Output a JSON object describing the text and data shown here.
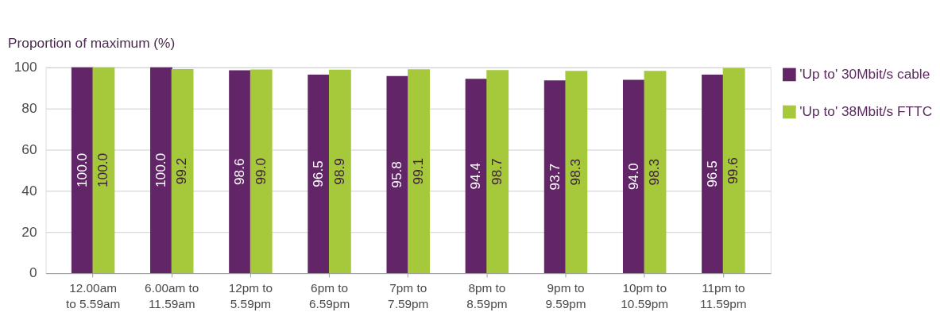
{
  "chart_data": {
    "type": "bar",
    "ylabel": "Proportion of maximum (%)",
    "categories": [
      "12.00am\nto 5.59am",
      "6.00am to\n11.59am",
      "12pm to\n5.59pm",
      "6pm to\n6.59pm",
      "7pm to\n7.59pm",
      "8pm to\n8.59pm",
      "9pm to\n9.59pm",
      "10pm to\n10.59pm",
      "11pm to\n11.59pm"
    ],
    "series": [
      {
        "name": "'Up to'\n30Mbit/s\ncable",
        "color": "#622567",
        "values": [
          100.0,
          100.0,
          98.6,
          96.5,
          95.8,
          94.4,
          93.7,
          94.0,
          96.5
        ],
        "value_labels": [
          "100.0",
          "100.0",
          "98.6",
          "96.5",
          "95.8",
          "94.4",
          "93.7",
          "94.0",
          "96.5"
        ]
      },
      {
        "name": "'Up to'\n38Mbit/s\nFTTC",
        "color": "#a5c93a",
        "values": [
          100.0,
          99.2,
          99.0,
          98.9,
          99.1,
          98.7,
          98.3,
          98.3,
          99.6
        ],
        "value_labels": [
          "100.0",
          "99.2",
          "99.0",
          "98.9",
          "99.1",
          "98.7",
          "98.3",
          "98.3",
          "99.6"
        ]
      }
    ],
    "ylim": [
      0,
      100
    ],
    "yticks": [
      0,
      20,
      40,
      60,
      80,
      100
    ],
    "grid": "y",
    "legend": "right"
  }
}
